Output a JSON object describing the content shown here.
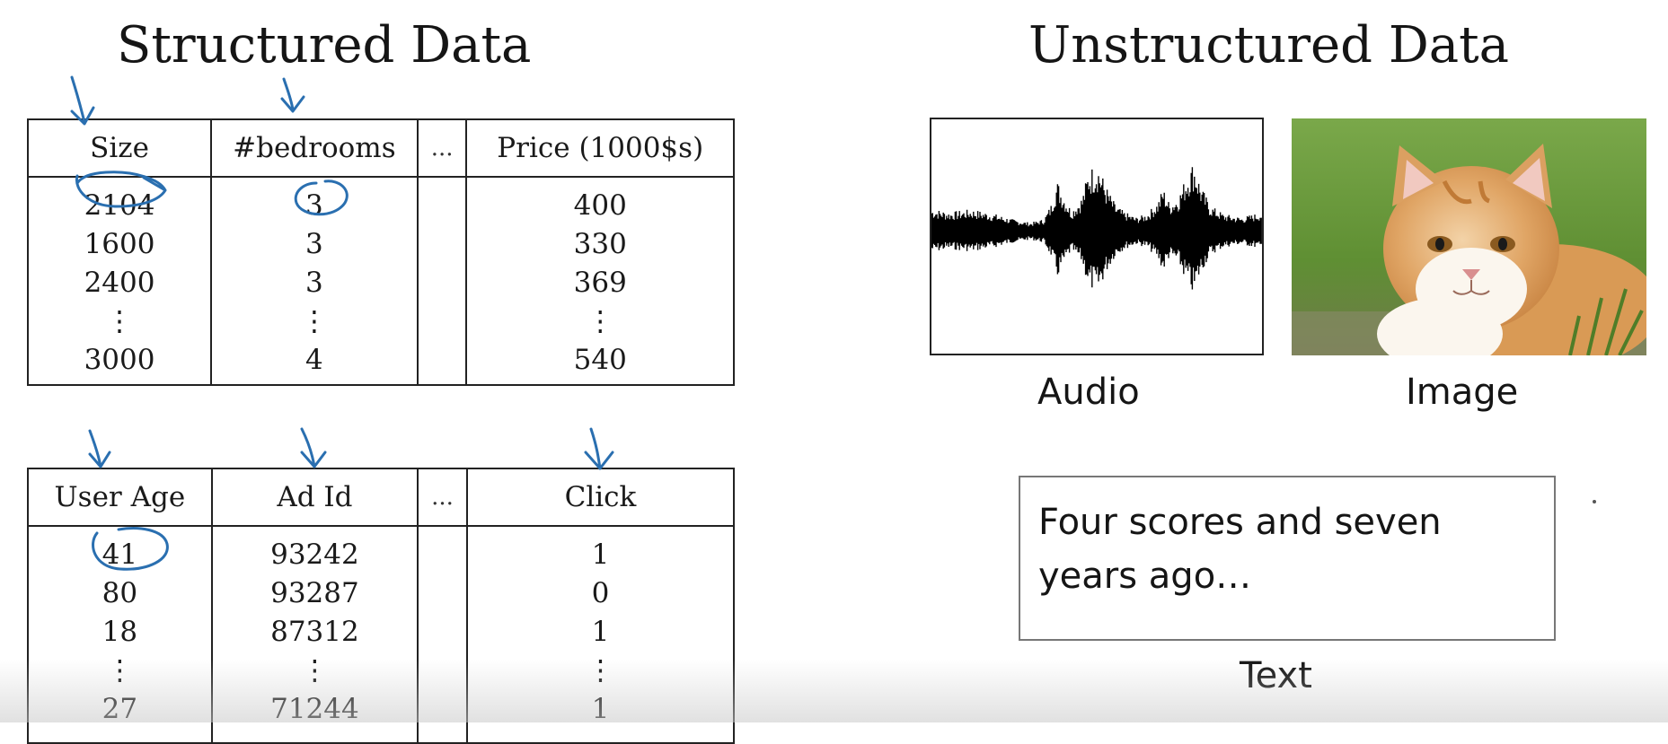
{
  "structured": {
    "title": "Structured Data",
    "housing": {
      "headers": [
        "Size",
        "#bedrooms",
        "...",
        "Price (1000$s)"
      ],
      "columns": [
        [
          "2104",
          "1600",
          "2400",
          "⋮",
          "3000"
        ],
        [
          "3",
          "3",
          "3",
          "⋮",
          "4"
        ],
        [],
        [
          "400",
          "330",
          "369",
          "⋮",
          "540"
        ]
      ]
    },
    "ads": {
      "headers": [
        "User Age",
        "Ad Id",
        "...",
        "Click"
      ],
      "columns": [
        [
          "41",
          "80",
          "18",
          "⋮",
          "27"
        ],
        [
          "93242",
          "93287",
          "87312",
          "⋮",
          "71244"
        ],
        [],
        [
          "1",
          "0",
          "1",
          "⋮",
          "1"
        ]
      ]
    }
  },
  "unstructured": {
    "title": "Unstructured Data",
    "audio_label": "Audio",
    "image_label": "Image",
    "text_label": "Text",
    "text_sample": "Four scores and seven years ago…"
  },
  "colors": {
    "annotation": "#2a6fb0",
    "waveform": "#000000"
  }
}
